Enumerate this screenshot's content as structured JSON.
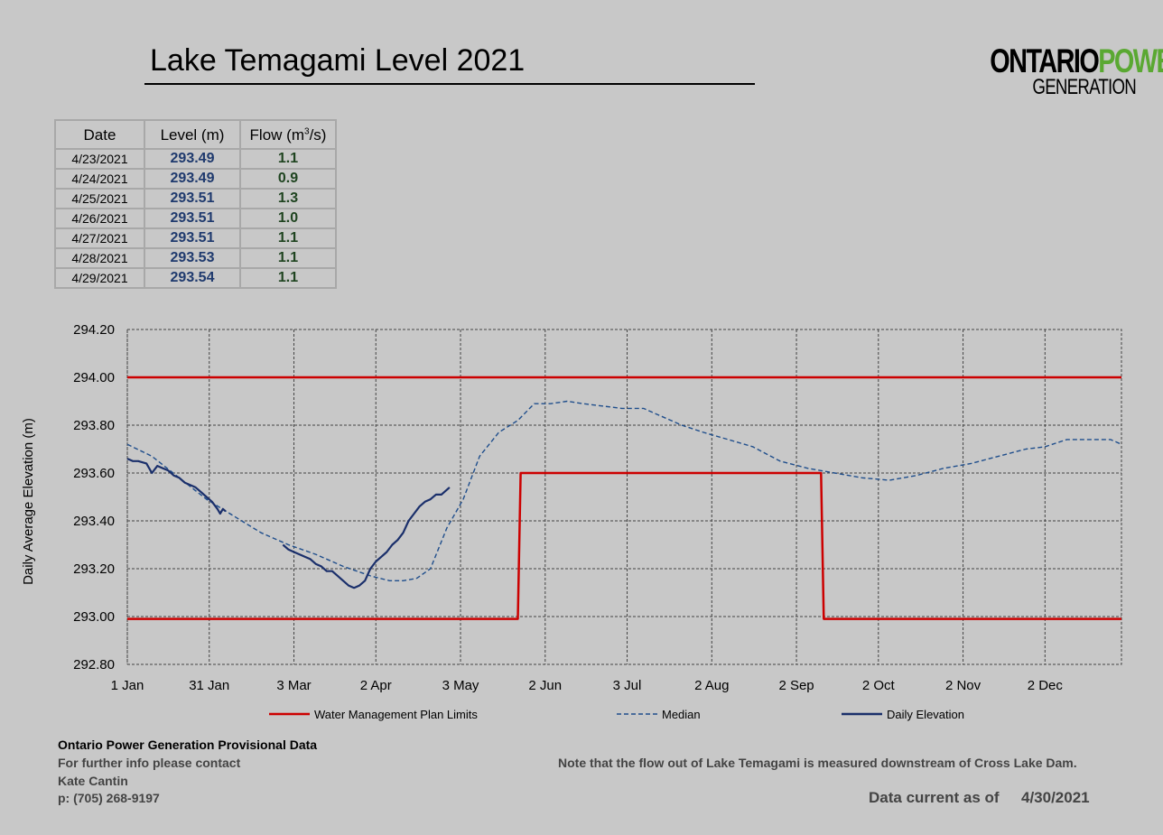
{
  "title": "Lake Temagami Level 2021",
  "logo": {
    "line1_a": "ONTARIO",
    "line1_b": "POWER",
    "line2": "GENERATION"
  },
  "table": {
    "headers": [
      "Date",
      "Level (m)",
      "Flow (m",
      "3",
      "/s)"
    ],
    "rows": [
      {
        "date": "4/23/2021",
        "level": "293.49",
        "flow": "1.1"
      },
      {
        "date": "4/24/2021",
        "level": "293.49",
        "flow": "0.9"
      },
      {
        "date": "4/25/2021",
        "level": "293.51",
        "flow": "1.3"
      },
      {
        "date": "4/26/2021",
        "level": "293.51",
        "flow": "1.0"
      },
      {
        "date": "4/27/2021",
        "level": "293.51",
        "flow": "1.1"
      },
      {
        "date": "4/28/2021",
        "level": "293.53",
        "flow": "1.1"
      },
      {
        "date": "4/29/2021",
        "level": "293.54",
        "flow": "1.1"
      }
    ]
  },
  "chart_data": {
    "type": "line",
    "ylabel": "Daily Average Elevation (m)",
    "ylim": [
      292.8,
      294.2
    ],
    "yticks": [
      294.2,
      294.0,
      293.8,
      293.6,
      293.4,
      293.2,
      293.0,
      292.8
    ],
    "ytick_labels": [
      "294.20",
      "294.00",
      "293.80",
      "293.60",
      "293.40",
      "293.20",
      "293.00",
      "292.80"
    ],
    "xlim": [
      1,
      365
    ],
    "xticks": [
      1,
      31,
      62,
      92,
      123,
      154,
      184,
      215,
      246,
      276,
      307,
      337
    ],
    "xtick_labels": [
      "1 Jan",
      "31 Jan",
      "3 Mar",
      "2 Apr",
      "3 May",
      "2 Jun",
      "3 Jul",
      "2 Aug",
      "2 Sep",
      "2 Oct",
      "2 Nov",
      "2 Dec"
    ],
    "grid": true,
    "legend_position": "bottom",
    "series": [
      {
        "name": "Water Management Plan Limits",
        "color": "#cc0000",
        "style": "solid",
        "segments": [
          {
            "x": [
              1,
              365
            ],
            "y": [
              294.0,
              294.0
            ]
          },
          {
            "x": [
              1,
              144,
              145,
              255,
              256,
              365
            ],
            "y": [
              292.99,
              292.99,
              293.6,
              293.6,
              292.99,
              292.99
            ]
          }
        ]
      },
      {
        "name": "Median",
        "color": "#1f4e8c",
        "style": "dashed",
        "x": [
          1,
          10,
          20,
          30,
          40,
          50,
          60,
          70,
          80,
          90,
          97,
          102,
          107,
          112,
          118,
          124,
          130,
          137,
          144,
          150,
          156,
          162,
          168,
          175,
          182,
          190,
          196,
          204,
          212,
          221,
          230,
          240,
          250,
          260,
          270,
          280,
          290,
          300,
          310,
          320,
          330,
          337,
          345,
          355,
          361,
          365
        ],
        "y": [
          293.72,
          293.67,
          293.58,
          293.49,
          293.42,
          293.35,
          293.3,
          293.26,
          293.21,
          293.17,
          293.15,
          293.15,
          293.16,
          293.2,
          293.37,
          293.49,
          293.67,
          293.77,
          293.82,
          293.89,
          293.89,
          293.9,
          293.89,
          293.88,
          293.87,
          293.87,
          293.84,
          293.8,
          293.77,
          293.74,
          293.71,
          293.65,
          293.62,
          293.6,
          293.58,
          293.57,
          293.59,
          293.62,
          293.64,
          293.67,
          293.7,
          293.71,
          293.74,
          293.74,
          293.74,
          293.72
        ]
      },
      {
        "name": "Daily Elevation",
        "color": "#1a2f6b",
        "style": "solid",
        "segments": [
          {
            "x": [
              1,
              3,
              5,
              8,
              10,
              12,
              14,
              16,
              18,
              20,
              22,
              24,
              26,
              28,
              30,
              32,
              34,
              35,
              36,
              37
            ],
            "y": [
              293.66,
              293.65,
              293.65,
              293.64,
              293.6,
              293.63,
              293.62,
              293.61,
              293.59,
              293.58,
              293.56,
              293.55,
              293.54,
              293.52,
              293.5,
              293.48,
              293.45,
              293.43,
              293.45,
              293.44
            ]
          },
          {
            "x": [
              58,
              60,
              62,
              64,
              66,
              68,
              70,
              72,
              74,
              76,
              78,
              80,
              82,
              84,
              86,
              88,
              90,
              92,
              94,
              96,
              98,
              100,
              102,
              104,
              106,
              108,
              110,
              112,
              114,
              116,
              118,
              119
            ],
            "y": [
              293.3,
              293.28,
              293.27,
              293.26,
              293.25,
              293.24,
              293.22,
              293.21,
              293.19,
              293.19,
              293.17,
              293.15,
              293.13,
              293.12,
              293.13,
              293.15,
              293.2,
              293.23,
              293.25,
              293.27,
              293.3,
              293.32,
              293.35,
              293.4,
              293.43,
              293.46,
              293.48,
              293.49,
              293.51,
              293.51,
              293.53,
              293.54
            ]
          }
        ]
      }
    ]
  },
  "footer": {
    "org": "Ontario Power Generation Provisional Data",
    "info": "For further info please contact",
    "name": "Kate Cantin",
    "phone": "p: (705) 268-9197",
    "note": "Note that the flow out of Lake Temagami is measured downstream of Cross Lake Dam.",
    "current_label": "Data current as of",
    "current_date": "4/30/2021"
  }
}
